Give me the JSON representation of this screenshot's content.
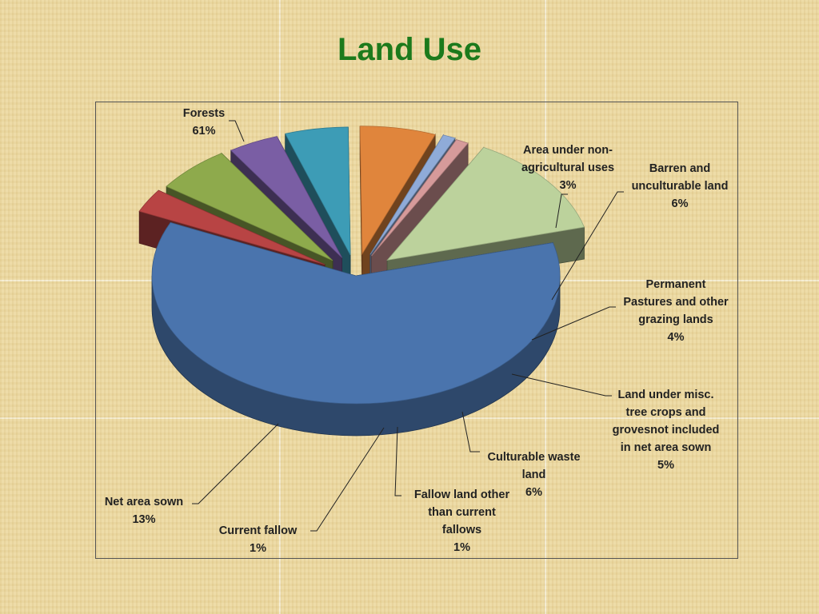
{
  "slide": {
    "title": "Land Use"
  },
  "chart_data": {
    "type": "pie",
    "title": "Land Use",
    "variant": "3d-exploded",
    "categories": [
      "Forests",
      "Area under non-agricultural uses",
      "Barren and unculturable land",
      "Permanent Pastures and other grazing lands",
      "Land under misc. tree crops and grovesnot included in net area sown",
      "Culturable waste land",
      "Fallow land other than current fallows",
      "Current fallow",
      "Net area sown"
    ],
    "values": [
      61,
      3,
      6,
      4,
      5,
      6,
      1,
      1,
      13
    ],
    "value_labels": [
      "61%",
      "3%",
      "6%",
      "4%",
      "5%",
      "6%",
      "1%",
      "1%",
      "13%"
    ],
    "colors": [
      "#4a74ad",
      "#b84444",
      "#8eaa4c",
      "#7a5ea4",
      "#3d9cb6",
      "#e0853c",
      "#8fabd8",
      "#d69a9a",
      "#bcd29c"
    ],
    "slices": [
      {
        "label_lines": [
          "Forests"
        ],
        "value": "61%"
      },
      {
        "label_lines": [
          "Area under non-",
          "agricultural uses"
        ],
        "value": "3%"
      },
      {
        "label_lines": [
          "Barren and",
          "unculturable land"
        ],
        "value": "6%"
      },
      {
        "label_lines": [
          "Permanent",
          "Pastures and other",
          "grazing lands"
        ],
        "value": "4%"
      },
      {
        "label_lines": [
          "Land under misc.",
          "tree crops and",
          "grovesnot included",
          "in net area sown"
        ],
        "value": "5%"
      },
      {
        "label_lines": [
          "Culturable waste",
          "land"
        ],
        "value": "6%"
      },
      {
        "label_lines": [
          "Fallow land other",
          "than current",
          "fallows"
        ],
        "value": "1%"
      },
      {
        "label_lines": [
          "Current fallow"
        ],
        "value": "1%"
      },
      {
        "label_lines": [
          "Net area sown"
        ],
        "value": "13%"
      }
    ]
  }
}
